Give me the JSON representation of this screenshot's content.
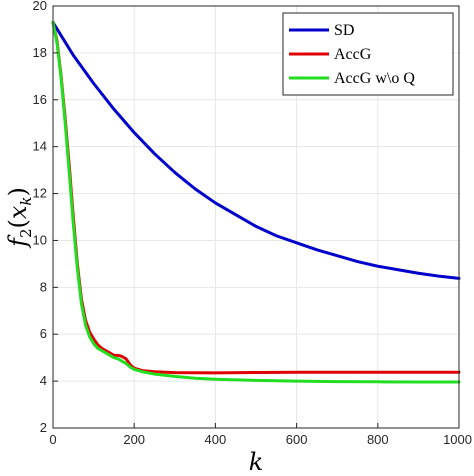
{
  "chart_data": {
    "type": "line",
    "title": "",
    "xlabel": "k",
    "ylabel_parts": {
      "base": "f",
      "sub": "2",
      "open": "(",
      "var": "x",
      "varsub": "k",
      "close": ")"
    },
    "xlim": [
      0,
      1000
    ],
    "ylim": [
      2,
      20
    ],
    "xticks": [
      0,
      200,
      400,
      600,
      800,
      1000
    ],
    "yticks": [
      2,
      4,
      6,
      8,
      10,
      12,
      14,
      16,
      18,
      20
    ],
    "grid": true,
    "legend_position": "top-right",
    "series": [
      {
        "name": "SD",
        "color": "#0000cc",
        "x": [
          0,
          50,
          100,
          150,
          200,
          250,
          300,
          350,
          400,
          450,
          500,
          550,
          600,
          650,
          700,
          750,
          800,
          850,
          900,
          950,
          1000
        ],
        "y": [
          19.3,
          17.9,
          16.7,
          15.6,
          14.6,
          13.7,
          12.9,
          12.2,
          11.6,
          11.1,
          10.6,
          10.2,
          9.9,
          9.6,
          9.35,
          9.1,
          8.9,
          8.75,
          8.6,
          8.48,
          8.38
        ]
      },
      {
        "name": "AccG",
        "color": "#e00000",
        "x": [
          0,
          10,
          20,
          30,
          40,
          50,
          60,
          70,
          80,
          90,
          100,
          110,
          120,
          130,
          140,
          150,
          160,
          170,
          180,
          190,
          200,
          220,
          250,
          300,
          400,
          500,
          600,
          700,
          800,
          900,
          1000
        ],
        "y": [
          19.3,
          18.5,
          17.0,
          15.2,
          13.2,
          11.0,
          9.0,
          7.5,
          6.6,
          6.1,
          5.8,
          5.55,
          5.4,
          5.3,
          5.2,
          5.1,
          5.1,
          5.05,
          4.95,
          4.7,
          4.55,
          4.45,
          4.4,
          4.36,
          4.35,
          4.37,
          4.38,
          4.38,
          4.38,
          4.38,
          4.38
        ]
      },
      {
        "name": "AccG w\\o Q",
        "color": "#22dd22",
        "x": [
          0,
          10,
          20,
          30,
          40,
          50,
          60,
          70,
          80,
          90,
          100,
          110,
          120,
          130,
          140,
          150,
          160,
          170,
          180,
          190,
          200,
          220,
          250,
          300,
          350,
          400,
          500,
          600,
          700,
          800,
          900,
          1000
        ],
        "y": [
          19.3,
          18.4,
          16.9,
          15.0,
          12.9,
          10.7,
          8.8,
          7.3,
          6.4,
          5.9,
          5.6,
          5.4,
          5.3,
          5.2,
          5.1,
          5.0,
          4.95,
          4.85,
          4.75,
          4.6,
          4.5,
          4.4,
          4.3,
          4.2,
          4.12,
          4.08,
          4.03,
          4.0,
          3.98,
          3.97,
          3.96,
          3.96
        ]
      }
    ]
  }
}
